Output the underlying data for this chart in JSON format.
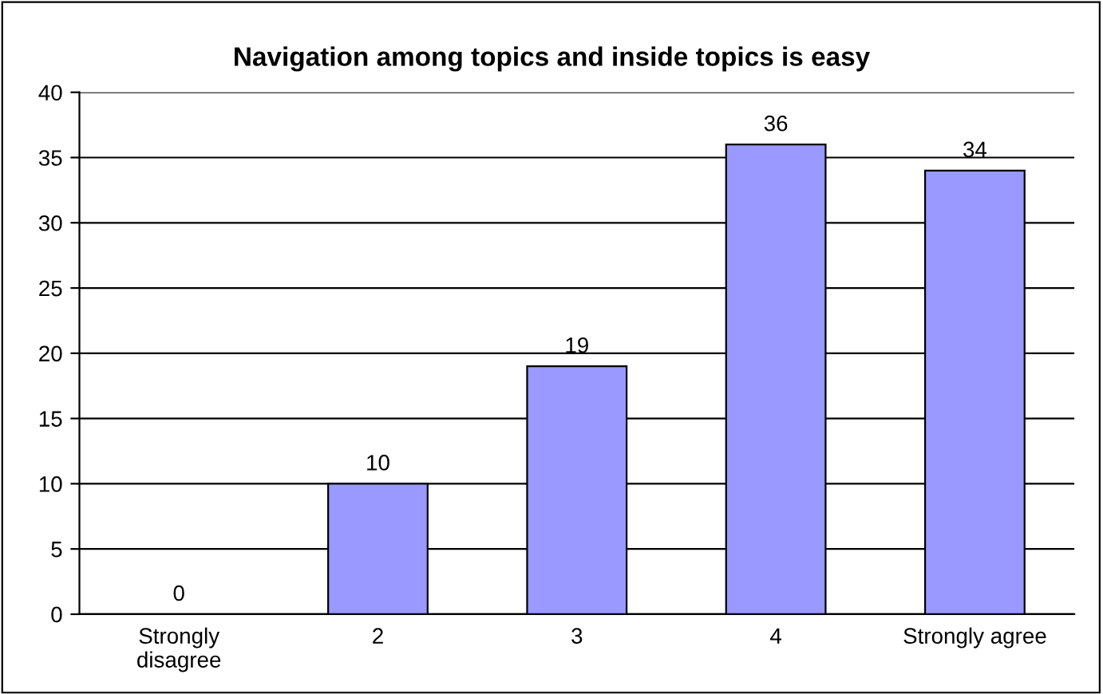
{
  "chart_data": {
    "type": "bar",
    "title": "Navigation among topics and inside topics is easy",
    "categories": [
      "Strongly\ndisagree",
      "2",
      "3",
      "4",
      "Strongly agree"
    ],
    "values": [
      0,
      10,
      19,
      36,
      34
    ],
    "color": "#9999ff",
    "ylim": [
      0,
      40
    ],
    "yticks": [
      0,
      5,
      10,
      15,
      20,
      25,
      30,
      35,
      40
    ],
    "grid": "y",
    "data_labels": true,
    "legend": false
  }
}
